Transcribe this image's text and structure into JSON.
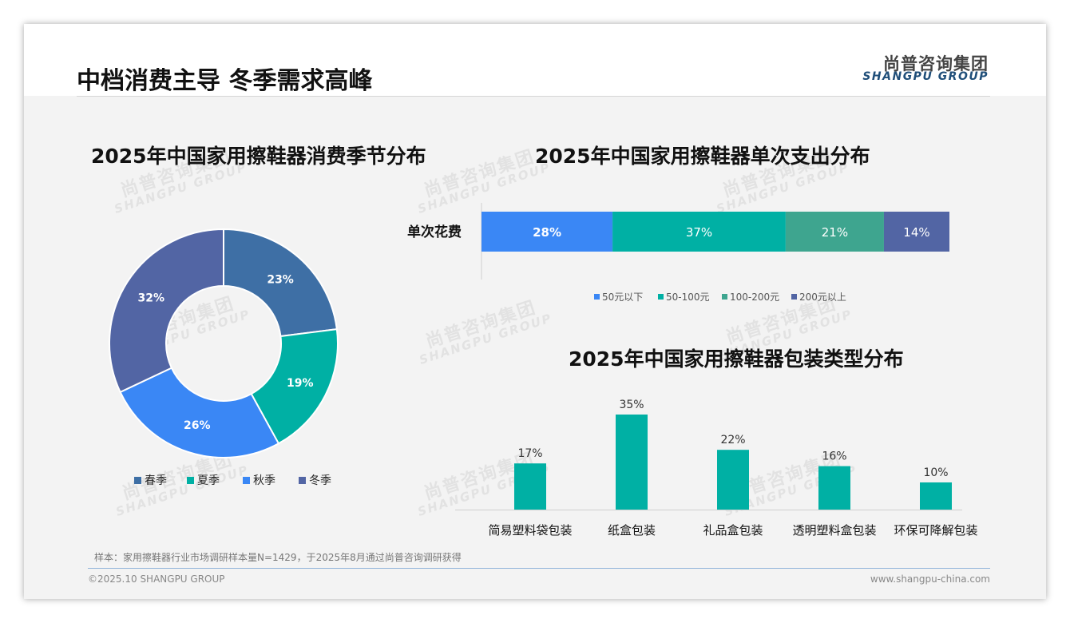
{
  "page": {
    "title": "中档消费主导 冬季需求高峰",
    "logo_cn": "尚普咨询集团",
    "logo_en": "SHANGPU GROUP",
    "footnote": "样本：家用擦鞋器行业市场调研样本量N=1429，于2025年8月通过尚普咨询调研获得",
    "copyright": "©2025.10 SHANGPU GROUP",
    "website": "www.shangpu-china.com",
    "watermark_cn": "尚普咨询集团",
    "watermark_en": "SHANGPU GROUP"
  },
  "chart_data": [
    {
      "type": "pie",
      "title": "2025年中国家用擦鞋器消费季节分布",
      "categories": [
        "春季",
        "夏季",
        "秋季",
        "冬季"
      ],
      "values": [
        23,
        19,
        26,
        32
      ],
      "labels": [
        "23%",
        "19%",
        "26%",
        "32%"
      ],
      "colors": [
        "#3e6fa5",
        "#00b0a4",
        "#3a87f5",
        "#5265a4"
      ],
      "legend_position": "bottom"
    },
    {
      "type": "bar",
      "stacked": true,
      "orientation": "horizontal",
      "title": "2025年中国家用擦鞋器单次支出分布",
      "categories": [
        "单次花费"
      ],
      "series": [
        {
          "name": "50元以下",
          "values": [
            28
          ],
          "label": "28%",
          "color": "#3a87f5"
        },
        {
          "name": "50-100元",
          "values": [
            37
          ],
          "label": "37%",
          "color": "#00b0a4"
        },
        {
          "name": "100-200元",
          "values": [
            21
          ],
          "label": "21%",
          "color": "#3ea58f"
        },
        {
          "name": "200元以上",
          "values": [
            14
          ],
          "label": "14%",
          "color": "#5265a4"
        }
      ],
      "xlim": [
        0,
        100
      ],
      "legend_position": "bottom"
    },
    {
      "type": "bar",
      "title": "2025年中国家用擦鞋器包装类型分布",
      "categories": [
        "简易塑料袋包装",
        "纸盒包装",
        "礼品盒包装",
        "透明塑料盒包装",
        "环保可降解包装"
      ],
      "values": [
        17,
        35,
        22,
        16,
        10
      ],
      "labels": [
        "17%",
        "35%",
        "22%",
        "16%",
        "10%"
      ],
      "color": "#00b0a4",
      "ylim": [
        0,
        35
      ]
    }
  ]
}
